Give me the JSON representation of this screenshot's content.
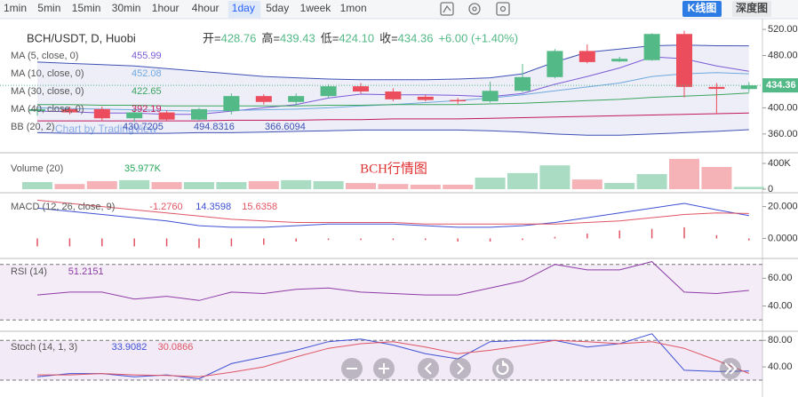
{
  "toolbar": {
    "intervals": [
      "1min",
      "5min",
      "15min",
      "30min",
      "1hour",
      "4hour",
      "1day",
      "5day",
      "1week",
      "1mon"
    ],
    "active": 6,
    "views": [
      "K线图",
      "深度图"
    ],
    "active_view": 0
  },
  "overlay_title": "BCH行情图",
  "watermark": "Chart by TradingView",
  "chart_data": [
    {
      "type": "candlestick",
      "title": "BCH/USDT, D, Huobi",
      "ohlc_legend": [
        {
          "label": "开=",
          "value": "428.76"
        },
        {
          "label": "高=",
          "value": "439.43"
        },
        {
          "label": "低=",
          "value": "424.10"
        },
        {
          "label": "收=",
          "value": "434.36"
        }
      ],
      "change": "+6.00 (+1.40%)",
      "up_color": "#53b987",
      "down_color": "#eb4d5c",
      "open": [
        395,
        398,
        398,
        384,
        393,
        382,
        395,
        418,
        409,
        418,
        433,
        425,
        417,
        412,
        410,
        426,
        447,
        487,
        471,
        473,
        513,
        432,
        428.76
      ],
      "high": [
        400,
        402,
        402,
        398,
        396,
        400,
        422,
        421,
        422,
        436,
        438,
        430,
        420,
        415,
        440,
        467,
        490,
        497,
        478,
        514,
        518,
        438,
        439.43
      ],
      "low": [
        388,
        390,
        380,
        378,
        380,
        380,
        390,
        405,
        403,
        415,
        422,
        410,
        410,
        406,
        408,
        424,
        445,
        468,
        470,
        472,
        416,
        391,
        424.1
      ],
      "close": [
        398,
        393,
        384,
        393,
        382,
        398,
        418,
        409,
        418,
        433,
        425,
        413,
        412,
        410,
        426,
        447,
        487,
        470,
        475,
        513,
        432,
        429,
        434.36
      ],
      "series": [
        {
          "name": "MA (5, close, 0)",
          "legend_value": "455.99",
          "color": "#7b5bd6",
          "values": [
            395,
            394,
            392,
            392,
            390,
            390,
            395,
            400,
            405,
            415,
            421,
            420,
            420,
            419,
            417,
            422,
            436,
            448,
            461,
            478,
            475,
            464,
            455.99
          ]
        },
        {
          "name": "MA (10, close, 0)",
          "legend_value": "452.08",
          "color": "#6fa8dc",
          "values": [
            400,
            399,
            398,
            397,
            396,
            395,
            396,
            397,
            398,
            400,
            403,
            405,
            408,
            411,
            415,
            420,
            426,
            432,
            438,
            448,
            452,
            454,
            452.08
          ]
        },
        {
          "name": "MA (30, close, 0)",
          "legend_value": "422.65",
          "color": "#3aa55d",
          "values": [
            405,
            405,
            404,
            404,
            403,
            403,
            403,
            403,
            403,
            404,
            404,
            405,
            405,
            405,
            406,
            407,
            409,
            411,
            413,
            416,
            418,
            420,
            422.65
          ]
        },
        {
          "name": "MA (40, close, 0)",
          "legend_value": "392.19",
          "color": "#c2185b",
          "values": [
            380,
            380,
            380,
            380,
            380,
            380,
            381,
            381,
            381,
            382,
            382,
            383,
            383,
            383,
            384,
            385,
            386,
            387,
            388,
            389,
            390,
            391,
            392.19
          ]
        }
      ],
      "bands": {
        "name": "BB (20, 2)",
        "legend_values": [
          "430.7205",
          "494.8316",
          "366.6094"
        ],
        "color": "#3f51b5",
        "fill": "rgba(90,90,200,0.10)",
        "upper": [
          470,
          468,
          466,
          464,
          460,
          456,
          452,
          448,
          446,
          444,
          443,
          443,
          443,
          444,
          446,
          452,
          470,
          485,
          490,
          495,
          496,
          495,
          494.83
        ],
        "lower": [
          362,
          361,
          361,
          361,
          361,
          362,
          362,
          363,
          364,
          365,
          366,
          366,
          366,
          366,
          365,
          363,
          360,
          358,
          358,
          360,
          362,
          364,
          366.61
        ]
      },
      "ylim": [
        334,
        531
      ],
      "yticks": [
        {
          "value": 520,
          "label": "520.00"
        },
        {
          "value": 480,
          "label": "480.00"
        },
        {
          "value": 400,
          "label": "400.00"
        },
        {
          "value": 360,
          "label": "360.00"
        }
      ]
    },
    {
      "type": "bar",
      "name": "Volume (20)",
      "legend_value": "35.977K",
      "legend_color": "#26a65b",
      "values": [
        110000,
        80000,
        125000,
        140000,
        110000,
        110000,
        110000,
        125000,
        140000,
        125000,
        95000,
        80000,
        70000,
        70000,
        180000,
        250000,
        370000,
        150000,
        97000,
        235000,
        470000,
        345000,
        35977
      ],
      "colors": [
        "#a9dcc3",
        "#f5b3b7",
        "#f5b3b7",
        "#a9dcc3",
        "#f5b3b7",
        "#a9dcc3",
        "#a9dcc3",
        "#f5b3b7",
        "#a9dcc3",
        "#a9dcc3",
        "#f5b3b7",
        "#f5b3b7",
        "#f5b3b7",
        "#f5b3b7",
        "#a9dcc3",
        "#a9dcc3",
        "#a9dcc3",
        "#f5b3b7",
        "#a9dcc3",
        "#a9dcc3",
        "#f5b3b7",
        "#f5b3b7",
        "#a9dcc3"
      ],
      "ylim": [
        0,
        524000
      ],
      "yticks": [
        {
          "value": 400000,
          "label": "400K"
        },
        0
      ]
    },
    {
      "type": "line",
      "name": "MACD (12, 26, close, 9)",
      "series": [
        {
          "legend_value": "-1.2760",
          "color": "#e05563",
          "kind": "bar",
          "values": [
            -5,
            -5,
            -5,
            -5,
            -5,
            -6,
            -5,
            -4,
            -2,
            -1,
            -1,
            -1,
            -1,
            -2,
            -2,
            -1,
            1,
            3,
            5,
            6,
            7,
            2,
            -1.276
          ]
        },
        {
          "legend_value": "14.3598",
          "color": "#3f51d5",
          "values": [
            19,
            17,
            15,
            13,
            11,
            8,
            7,
            7,
            8,
            9,
            9,
            9,
            8,
            7,
            7,
            8,
            10,
            13,
            16,
            19,
            22,
            18,
            14.36
          ]
        },
        {
          "legend_value": "15.6358",
          "color": "#e05563",
          "values": [
            24,
            22,
            20,
            18,
            16,
            14,
            12,
            11,
            10,
            10,
            10,
            10,
            9,
            9,
            9,
            9,
            9,
            10,
            11,
            13,
            15,
            16,
            15.64
          ]
        }
      ],
      "ylim": [
        -12,
        27
      ],
      "yticks": [
        {
          "value": 20,
          "label": "20.000"
        },
        {
          "value": 0,
          "label": "0.0000"
        }
      ]
    },
    {
      "type": "line",
      "name": "RSI (14)",
      "levels": [
        30,
        70
      ],
      "level_fill": "rgba(150,80,180,0.10)",
      "series": [
        {
          "legend_value": "51.2151",
          "color": "#8e3ba6",
          "values": [
            48,
            50,
            50,
            45,
            47,
            44,
            50,
            49,
            52,
            53,
            50,
            49,
            48,
            48,
            53,
            58,
            70,
            66,
            66,
            72,
            50,
            49,
            51.2151
          ]
        }
      ],
      "ylim": [
        25,
        73
      ],
      "yticks": [
        {
          "value": 60,
          "label": "60.00"
        },
        {
          "value": 40,
          "label": "40.00"
        }
      ]
    },
    {
      "type": "line",
      "name": "Stoch (14, 1, 3)",
      "levels": [
        20,
        80
      ],
      "level_fill": "rgba(150,80,180,0.12)",
      "series": [
        {
          "legend_value": "33.9082",
          "color": "#3f51d5",
          "values": [
            25,
            30,
            30,
            25,
            28,
            22,
            45,
            55,
            65,
            78,
            82,
            73,
            60,
            52,
            78,
            80,
            80,
            70,
            75,
            90,
            35,
            33,
            33.91
          ]
        },
        {
          "legend_value": "30.0866",
          "color": "#e05563",
          "values": [
            28,
            28,
            30,
            28,
            27,
            25,
            32,
            40,
            55,
            68,
            75,
            78,
            70,
            60,
            65,
            72,
            80,
            78,
            75,
            78,
            68,
            50,
            30.09
          ]
        }
      ],
      "ylim": [
        0,
        87
      ],
      "yticks": [
        {
          "value": 80,
          "label": "80.00"
        },
        {
          "value": 40,
          "label": "40.00"
        }
      ]
    }
  ]
}
